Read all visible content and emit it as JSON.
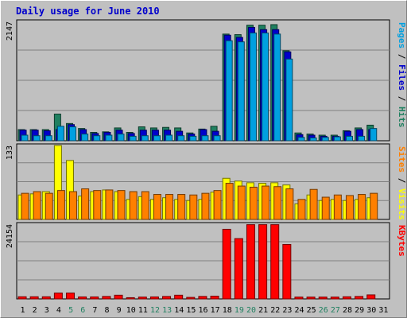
{
  "chart_data": {
    "type": "bar",
    "title": "Daily usage for June 2010",
    "categories": [
      "1",
      "2",
      "3",
      "4",
      "5",
      "6",
      "7",
      "8",
      "9",
      "10",
      "11",
      "12",
      "13",
      "14",
      "15",
      "16",
      "17",
      "18",
      "19",
      "20",
      "21",
      "22",
      "23",
      "24",
      "25",
      "26",
      "27",
      "28",
      "29",
      "30",
      "31"
    ],
    "weekend_categories": [
      "5",
      "6",
      "12",
      "13",
      "19",
      "20",
      "26",
      "27"
    ],
    "panels": [
      {
        "id": "pages-files-hits",
        "max_label": "2147",
        "max": 2147,
        "right_label": [
          {
            "text": "Pages",
            "color": "#00a0e0"
          },
          {
            "text": " / ",
            "color": "#000000"
          },
          {
            "text": "Files",
            "color": "#0000cc"
          },
          {
            "text": " / ",
            "color": "#000000"
          },
          {
            "text": "Hits",
            "color": "#208060"
          }
        ],
        "series": [
          {
            "name": "Hits",
            "color": "#208060",
            "values": [
              200,
              200,
              200,
              480,
              310,
              220,
              150,
              160,
              230,
              150,
              250,
              230,
              240,
              230,
              140,
              210,
              260,
              1920,
              1910,
              2080,
              2080,
              2090,
              1620,
              140,
              120,
              100,
              100,
              180,
              230,
              280,
              0
            ]
          },
          {
            "name": "Files",
            "color": "#0000cc",
            "values": [
              190,
              190,
              180,
              200,
              290,
              200,
              130,
              150,
              190,
              130,
              190,
              190,
              190,
              170,
              120,
              200,
              170,
              1900,
              1860,
              2040,
              2000,
              2000,
              1600,
              110,
              100,
              80,
              80,
              170,
              200,
              200,
              0
            ]
          },
          {
            "name": "Pages",
            "color": "#00a0e0",
            "values": [
              100,
              90,
              90,
              260,
              250,
              120,
              90,
              100,
              120,
              80,
              90,
              90,
              100,
              90,
              80,
              90,
              90,
              1800,
              1780,
              1940,
              1940,
              1920,
              1470,
              60,
              50,
              60,
              70,
              80,
              80,
              220,
              0
            ]
          }
        ]
      },
      {
        "id": "sites-visits",
        "max_label": "133",
        "max": 133,
        "right_label": [
          {
            "text": "Sites",
            "color": "#ff8000"
          },
          {
            "text": " / ",
            "color": "#000000"
          },
          {
            "text": "Visits",
            "color": "#ffff00"
          }
        ],
        "series": [
          {
            "name": "Visits",
            "color": "#ffff00",
            "values": [
              44,
              46,
              50,
              133,
              106,
              42,
              50,
              53,
              50,
              36,
              41,
              36,
              39,
              36,
              34,
              36,
              49,
              74,
              69,
              66,
              65,
              66,
              62,
              28,
              44,
              34,
              36,
              34,
              36,
              39,
              0
            ]
          },
          {
            "name": "Sites",
            "color": "#ff8000",
            "values": [
              47,
              50,
              47,
              52,
              50,
              55,
              52,
              53,
              52,
              50,
              50,
              45,
              45,
              45,
              44,
              47,
              52,
              65,
              60,
              58,
              60,
              59,
              55,
              36,
              54,
              40,
              44,
              43,
              45,
              47,
              0
            ]
          }
        ]
      },
      {
        "id": "kbytes",
        "max_label": "24154",
        "max": 24154,
        "right_label": [
          {
            "text": "KBytes",
            "color": "#ff0000"
          }
        ],
        "series": [
          {
            "name": "KBytes",
            "color": "#ff0000",
            "values": [
              700,
              700,
              700,
              1900,
              1900,
              650,
              650,
              800,
              1200,
              400,
              600,
              650,
              800,
              1200,
              500,
              800,
              900,
              22500,
              19500,
              24000,
              24000,
              24000,
              17600,
              600,
              600,
              600,
              600,
              700,
              800,
              1300,
              0
            ]
          }
        ]
      }
    ]
  }
}
